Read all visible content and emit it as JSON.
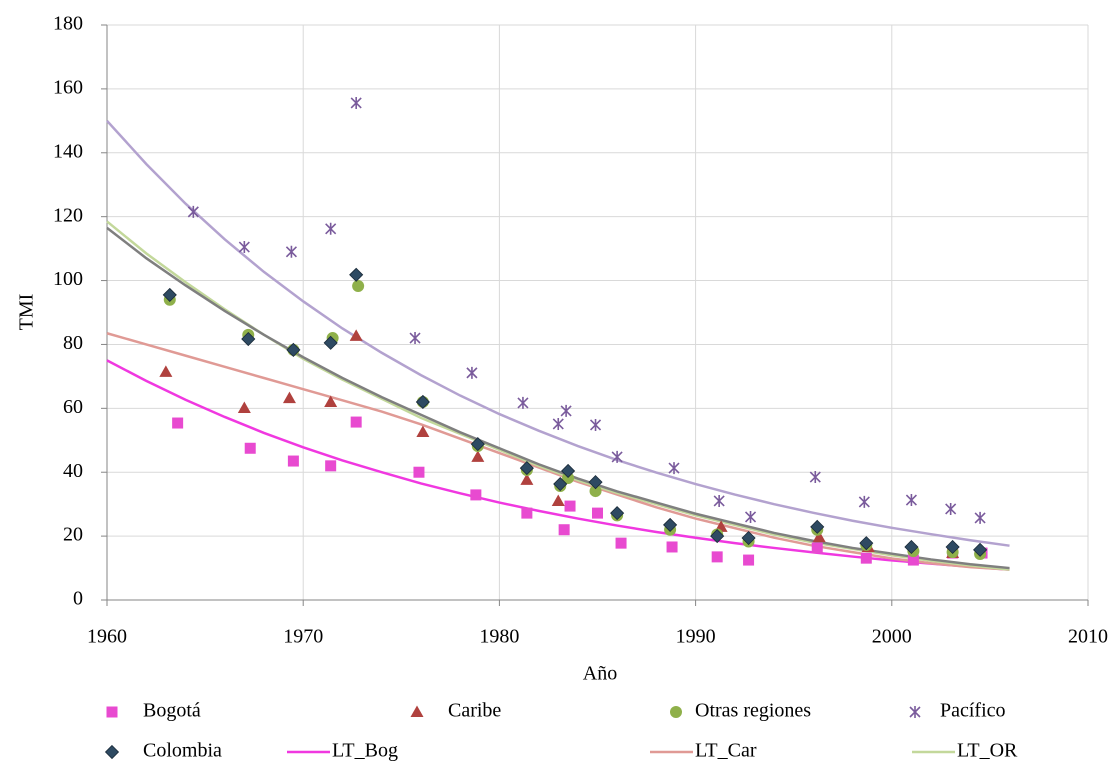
{
  "chart_data": {
    "type": "scatter",
    "x_label": "Año",
    "y_label": "TMI",
    "xlim": [
      1960,
      2010
    ],
    "xticks": [
      1960,
      1970,
      1980,
      1990,
      2000,
      2010
    ],
    "ylim": [
      0,
      180
    ],
    "yticks": [
      0,
      20,
      40,
      60,
      80,
      100,
      120,
      140,
      160,
      180
    ],
    "grid": true,
    "legend": "bottom",
    "series": [
      {
        "name": "Bogotá",
        "color": "#e84ad0",
        "marker": "square",
        "x": [
          1963.6,
          1967.3,
          1969.5,
          1971.4,
          1972.7,
          1975.9,
          1978.8,
          1981.4,
          1983.3,
          1983.6,
          1985.0,
          1986.2,
          1988.8,
          1991.1,
          1992.7,
          1996.2,
          1998.7,
          2001.1,
          2003.1,
          2004.6
        ],
        "values": [
          55.4,
          47.5,
          43.5,
          42,
          55.7,
          40,
          32.9,
          27.2,
          22,
          29.4,
          27.2,
          17.8,
          16.6,
          13.5,
          12.5,
          16.3,
          13.1,
          12.5,
          14.7,
          14.7
        ]
      },
      {
        "name": "Caribe",
        "color": "#b0413e",
        "marker": "triangle",
        "x": [
          1963.0,
          1967.0,
          1969.3,
          1971.4,
          1972.7,
          1976.1,
          1978.9,
          1981.4,
          1983.0,
          1991.3,
          1996.3,
          1998.8,
          2003.1
        ],
        "values": [
          71.4,
          60.1,
          63.2,
          62,
          82.7,
          52.6,
          44.8,
          37.6,
          31,
          22.9,
          19.7,
          16.6,
          14.7
        ]
      },
      {
        "name": "Otras regiones",
        "color": "#8fb04a",
        "marker": "circle",
        "x": [
          1963.2,
          1967.2,
          1969.5,
          1971.5,
          1972.8,
          1976.1,
          1978.9,
          1981.4,
          1983.1,
          1983.5,
          1984.9,
          1986.0,
          1988.7,
          1991.1,
          1992.7,
          1996.2,
          1998.7,
          2001.1,
          2003.1,
          2004.5
        ],
        "values": [
          94,
          83,
          78.3,
          82,
          98.3,
          62,
          48.2,
          40.7,
          35.7,
          38.2,
          34.1,
          26.5,
          22,
          20.5,
          18.3,
          22,
          17.2,
          15.3,
          15,
          14.4
        ]
      },
      {
        "name": "Pacífico",
        "color": "#7a5b9c",
        "marker": "star",
        "x": [
          1964.4,
          1967.0,
          1969.4,
          1971.4,
          1972.7,
          1975.7,
          1978.6,
          1981.2,
          1983.0,
          1983.4,
          1984.9,
          1986.0,
          1988.9,
          1991.2,
          1992.8,
          1996.1,
          1998.6,
          2001.0,
          2003.0,
          2004.5
        ],
        "values": [
          121.5,
          110.5,
          109,
          116.2,
          155.6,
          82,
          71.1,
          61.7,
          55.1,
          59.2,
          54.8,
          44.8,
          41.3,
          31,
          26,
          38.5,
          30.7,
          31.3,
          28.5,
          25.7
        ]
      },
      {
        "name": "Colombia",
        "color": "#2e4a62",
        "marker": "diamond",
        "x": [
          1963.2,
          1967.2,
          1969.5,
          1971.4,
          1972.7,
          1976.1,
          1978.9,
          1981.4,
          1983.1,
          1983.5,
          1984.9,
          1986.0,
          1988.7,
          1991.1,
          1992.7,
          1996.2,
          1998.7,
          2001.0,
          2003.1,
          2004.5
        ],
        "values": [
          95.5,
          81.7,
          78.3,
          80.5,
          101.8,
          62,
          48.8,
          41.3,
          36.3,
          40.4,
          36.9,
          27.2,
          23.5,
          20,
          19.4,
          22.9,
          17.8,
          16.6,
          16.6,
          15.7
        ]
      },
      {
        "name": "LT_Bog",
        "color": "#f038e0",
        "marker": "line",
        "x": [
          1960,
          1962,
          1964,
          1966,
          1968,
          1970,
          1972,
          1974,
          1976,
          1978,
          1980,
          1982,
          1984,
          1986,
          1988,
          1990,
          1992,
          1994,
          1996,
          1998,
          2000,
          2002,
          2004,
          2006
        ],
        "values": [
          75,
          68.6,
          62.7,
          57.3,
          52.3,
          47.8,
          43.7,
          40.0,
          36.5,
          33.4,
          30.5,
          27.9,
          25.5,
          23.3,
          21.3,
          19.5,
          17.8,
          16.3,
          14.9,
          13.6,
          12.4,
          11.4,
          10.4,
          9.5
        ]
      },
      {
        "name": "LT_Car",
        "color": "#e09a95",
        "marker": "line",
        "x": [
          1960,
          1962,
          1964,
          1966,
          1968,
          1970,
          1972,
          1974,
          1976,
          1978,
          1980,
          1982,
          1984,
          1986,
          1988,
          1990,
          1992,
          1994,
          1996,
          1998,
          2000,
          2002,
          2004,
          2006
        ],
        "values": [
          83.5,
          80,
          76.5,
          73,
          69.5,
          66,
          62.5,
          59,
          55,
          50.5,
          46,
          41.5,
          37,
          33,
          29,
          25.5,
          22.5,
          19.5,
          17,
          15,
          13,
          11.5,
          10.3,
          9.5
        ]
      },
      {
        "name": "LT_OR",
        "color": "#c3d89b",
        "marker": "line",
        "x": [
          1960,
          1962,
          1964,
          1966,
          1968,
          1970,
          1972,
          1974,
          1976,
          1978,
          1980,
          1982,
          1984,
          1986,
          1988,
          1990,
          1992,
          1994,
          1996,
          1998,
          2000,
          2002,
          2004,
          2006
        ],
        "values": [
          118.5,
          108.5,
          99.5,
          91,
          83,
          75.5,
          69,
          63,
          57,
          52,
          47,
          42,
          37.5,
          33.5,
          30,
          26.5,
          23.5,
          20.5,
          18,
          16,
          14,
          12.3,
          10.8,
          9.5
        ]
      },
      {
        "color": "#b3a2cf",
        "marker": "line",
        "x": [
          1960,
          1962,
          1964,
          1966,
          1968,
          1970,
          1972,
          1974,
          1976,
          1978,
          1980,
          1982,
          1984,
          1986,
          1988,
          1990,
          1992,
          1994,
          1996,
          1998,
          2000,
          2002,
          2004,
          2006
        ],
        "values": [
          150,
          136.5,
          124.1,
          112.9,
          102.7,
          93.5,
          85.0,
          77.4,
          70.4,
          64.0,
          58.2,
          53.0,
          48.2,
          43.8,
          39.9,
          36.3,
          33.0,
          30.0,
          27.3,
          24.8,
          22.6,
          20.6,
          18.7,
          17.0
        ]
      },
      {
        "color": "#7f7f7f",
        "marker": "line",
        "x": [
          1960,
          1962,
          1964,
          1966,
          1968,
          1970,
          1972,
          1974,
          1976,
          1978,
          1980,
          1982,
          1984,
          1986,
          1988,
          1990,
          1992,
          1994,
          1996,
          1998,
          2000,
          2002,
          2004,
          2006
        ],
        "values": [
          116.5,
          107,
          98.5,
          90.5,
          83,
          76,
          69.5,
          63.5,
          58,
          52.5,
          47.5,
          42.5,
          38,
          34,
          30.5,
          27,
          24,
          21,
          18.5,
          16.3,
          14.5,
          12.7,
          11.2,
          10
        ]
      }
    ]
  }
}
